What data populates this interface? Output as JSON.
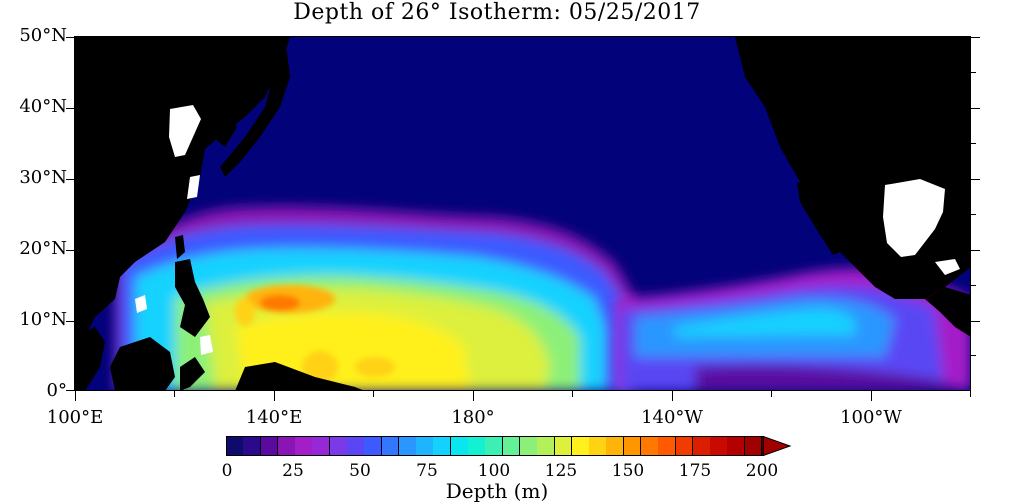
{
  "title": "Depth of 26° Isotherm: 05/25/2017",
  "lat_labels": [
    "50°N",
    "40°N",
    "30°N",
    "20°N",
    "10°N",
    "0°"
  ],
  "lon_labels": [
    "100°E",
    "140°E",
    "180°",
    "140°W",
    "100°W"
  ],
  "colorbar": {
    "label": "Depth (m)",
    "tick_labels": [
      "0",
      "25",
      "50",
      "75",
      "100",
      "125",
      "150",
      "175",
      "200"
    ],
    "colors": [
      "#0e0a6e",
      "#2a0a8a",
      "#5a0aa0",
      "#8a14b4",
      "#a41ec8",
      "#9628d8",
      "#7a3ae8",
      "#5a46f4",
      "#3c5aff",
      "#3278ff",
      "#2a96ff",
      "#1eb4ff",
      "#14d2ff",
      "#0ae6f0",
      "#14f0d2",
      "#3cf0b4",
      "#64f096",
      "#8cf078",
      "#b4f05a",
      "#dcf03c",
      "#fff01e",
      "#ffd214",
      "#ffb40a",
      "#ff9600",
      "#ff7800",
      "#ff5a00",
      "#f03c00",
      "#dc1e00",
      "#c80a00",
      "#b40000",
      "#a00000"
    ]
  },
  "colors": {
    "land": "#000000",
    "no_data": "#ffffff",
    "shallow_ocean": "#02027a"
  }
}
